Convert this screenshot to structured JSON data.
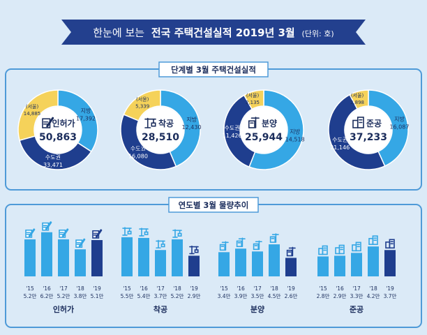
{
  "banner": {
    "prefix": "한눈에 보는",
    "main": "전국 주택건설실적 2019년 3월",
    "unit": "(단위: 호)"
  },
  "section1": {
    "title": "단계별 3월 주택건설실적"
  },
  "section2": {
    "title": "연도별 3월 물량추이"
  },
  "colors": {
    "background": "#dbeaf7",
    "banner": "#23408e",
    "capital_area": "#1f3e8e",
    "local": "#35a7e5",
    "seoul": "#f5d25a",
    "bar_light": "#35a7e5",
    "bar_dark": "#1f3e8e"
  },
  "icons": [
    "permit-pen-icon",
    "crane-icon",
    "building-construction-icon",
    "apartment-buildings-icon"
  ],
  "chart_data": [
    {
      "type": "pie",
      "title": "인허가",
      "total": "50,863",
      "slices": [
        {
          "label": "지방",
          "value": 17392,
          "display": "17,392"
        },
        {
          "label": "수도권",
          "value": 33471,
          "display": "33,471"
        },
        {
          "label": "(서울)",
          "value": 14885,
          "display": "14,885"
        }
      ],
      "note": "(서울) is a subset of 수도권"
    },
    {
      "type": "pie",
      "title": "착공",
      "total": "28,510",
      "slices": [
        {
          "label": "지방",
          "value": 12430,
          "display": "12,430"
        },
        {
          "label": "수도권",
          "value": 16080,
          "display": "16,080"
        },
        {
          "label": "(서울)",
          "value": 5339,
          "display": "5,339"
        }
      ]
    },
    {
      "type": "pie",
      "title": "분양",
      "total": "25,944",
      "slices": [
        {
          "label": "지방",
          "value": 14518,
          "display": "14,518"
        },
        {
          "label": "수도권",
          "value": 11426,
          "display": "11,426"
        },
        {
          "label": "(서울)",
          "value": 2135,
          "display": "2,135"
        }
      ]
    },
    {
      "type": "pie",
      "title": "준공",
      "total": "37,233",
      "slices": [
        {
          "label": "지방",
          "value": 16087,
          "display": "16,087"
        },
        {
          "label": "수도권",
          "value": 21146,
          "display": "21,146"
        },
        {
          "label": "(서울)",
          "value": 2898,
          "display": "2,898"
        }
      ]
    },
    {
      "type": "bar",
      "title": "인허가",
      "categories": [
        "'15",
        "'16",
        "'17",
        "'18",
        "'19"
      ],
      "values": [
        5.2,
        6.2,
        5.2,
        3.8,
        5.1
      ],
      "value_labels": [
        "5.2만",
        "6.2만",
        "5.2만",
        "3.8만",
        "5.1만"
      ]
    },
    {
      "type": "bar",
      "title": "착공",
      "categories": [
        "'15",
        "'16",
        "'17",
        "'18",
        "'19"
      ],
      "values": [
        5.5,
        5.4,
        3.7,
        5.2,
        2.9
      ],
      "value_labels": [
        "5.5만",
        "5.4만",
        "3.7만",
        "5.2만",
        "2.9만"
      ]
    },
    {
      "type": "bar",
      "title": "분양",
      "categories": [
        "'15",
        "'16",
        "'17",
        "'18",
        "'19"
      ],
      "values": [
        3.4,
        3.9,
        3.5,
        4.5,
        2.6
      ],
      "value_labels": [
        "3.4만",
        "3.9만",
        "3.5만",
        "4.5만",
        "2.6만"
      ]
    },
    {
      "type": "bar",
      "title": "준공",
      "categories": [
        "'15",
        "'16",
        "'17",
        "'18",
        "'19"
      ],
      "values": [
        2.8,
        2.9,
        3.3,
        4.2,
        3.7
      ],
      "value_labels": [
        "2.8만",
        "2.9만",
        "3.3만",
        "4.2만",
        "3.7만"
      ]
    }
  ]
}
